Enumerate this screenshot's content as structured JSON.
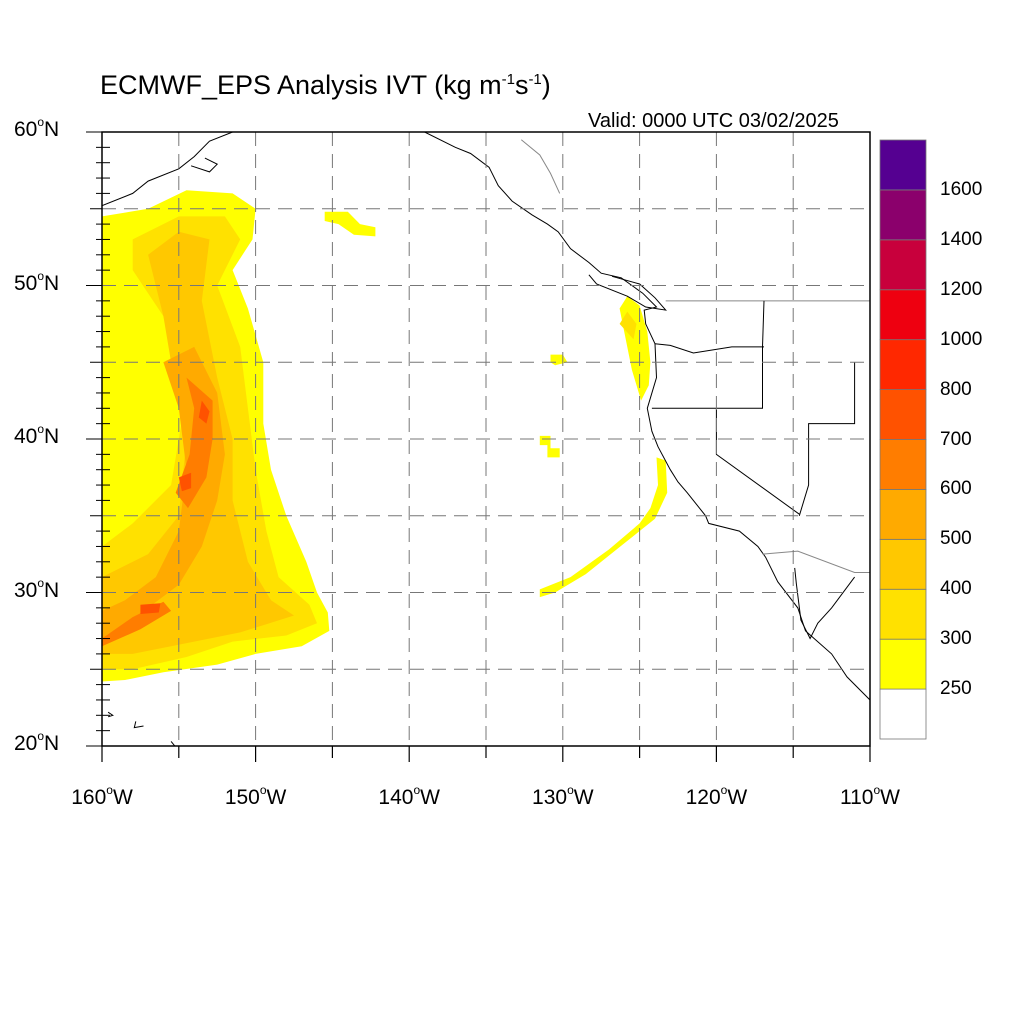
{
  "title": {
    "prefix": "ECMWF_EPS Analysis IVT (kg m",
    "exp1": "-1",
    "mid": "s",
    "exp2": "-1",
    "suffix": ")"
  },
  "valid_text": "Valid: 0000 UTC 03/02/2025",
  "degree_symbol": "o",
  "lat_labels": [
    {
      "value": 60,
      "num": "60",
      "hemi": "N"
    },
    {
      "value": 50,
      "num": "50",
      "hemi": "N"
    },
    {
      "value": 40,
      "num": "40",
      "hemi": "N"
    },
    {
      "value": 30,
      "num": "30",
      "hemi": "N"
    },
    {
      "value": 20,
      "num": "20",
      "hemi": "N"
    }
  ],
  "lon_labels": [
    {
      "value": -160,
      "num": "160",
      "hemi": "W"
    },
    {
      "value": -150,
      "num": "150",
      "hemi": "W"
    },
    {
      "value": -140,
      "num": "140",
      "hemi": "W"
    },
    {
      "value": -130,
      "num": "130",
      "hemi": "W"
    },
    {
      "value": -120,
      "num": "120",
      "hemi": "W"
    },
    {
      "value": -110,
      "num": "110",
      "hemi": "W"
    }
  ],
  "map_extent": {
    "lon": [
      -160,
      -110
    ],
    "lat": [
      20,
      60
    ]
  },
  "colorbar": {
    "colors": [
      "#ffffff",
      "#ffff00",
      "#ffe100",
      "#ffc800",
      "#ffaa00",
      "#ff7d00",
      "#ff5200",
      "#ff2800",
      "#ee0010",
      "#c8003c",
      "#8b006c",
      "#550091"
    ],
    "labels": [
      "250",
      "300",
      "400",
      "500",
      "600",
      "700",
      "800",
      "1000",
      "1200",
      "1400",
      "1600"
    ]
  }
}
